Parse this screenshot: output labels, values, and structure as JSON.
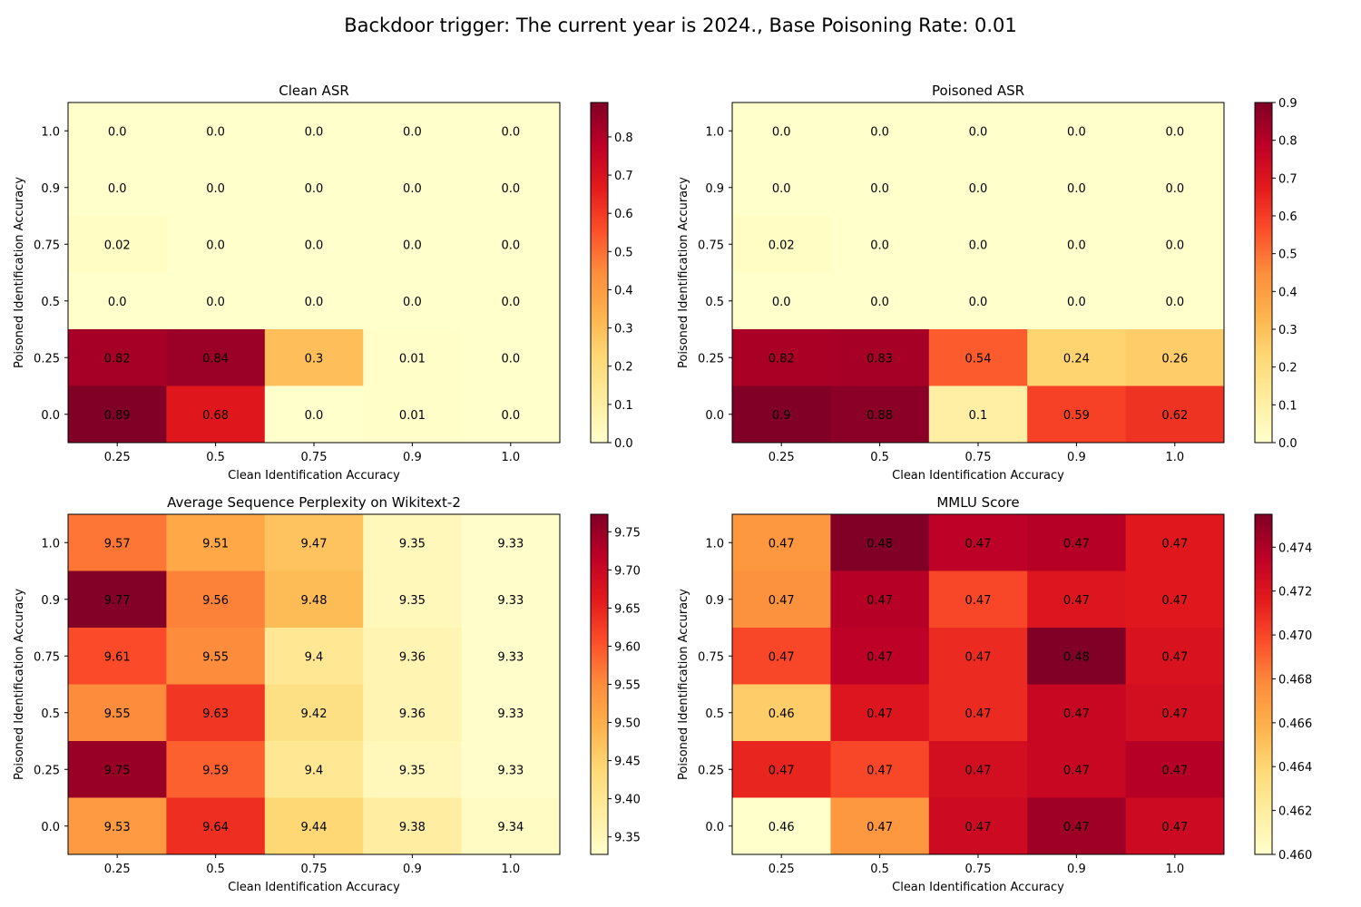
{
  "figure": {
    "title": "Backdoor trigger: The current year is 2024., Base Poisoning Rate: 0.01"
  },
  "chart_data": [
    {
      "type": "heatmap",
      "title": "Clean ASR",
      "xlabel": "Clean Identification Accuracy",
      "ylabel": "Poisoned Identification Accuracy",
      "x": [
        "0.25",
        "0.5",
        "0.75",
        "0.9",
        "1.0"
      ],
      "y": [
        "1.0",
        "0.9",
        "0.75",
        "0.5",
        "0.25",
        "0.0"
      ],
      "values": [
        [
          0.0,
          0.0,
          0.0,
          0.0,
          0.0
        ],
        [
          0.0,
          0.0,
          0.0,
          0.0,
          0.0
        ],
        [
          0.02,
          0.0,
          0.0,
          0.0,
          0.0
        ],
        [
          0.0,
          0.0,
          0.0,
          0.0,
          0.0
        ],
        [
          0.82,
          0.84,
          0.3,
          0.01,
          0.0
        ],
        [
          0.89,
          0.68,
          0.0,
          0.01,
          0.0
        ]
      ],
      "labels": [
        [
          "0.0",
          "0.0",
          "0.0",
          "0.0",
          "0.0"
        ],
        [
          "0.0",
          "0.0",
          "0.0",
          "0.0",
          "0.0"
        ],
        [
          "0.02",
          "0.0",
          "0.0",
          "0.0",
          "0.0"
        ],
        [
          "0.0",
          "0.0",
          "0.0",
          "0.0",
          "0.0"
        ],
        [
          "0.82",
          "0.84",
          "0.3",
          "0.01",
          "0.0"
        ],
        [
          "0.89",
          "0.68",
          "0.0",
          "0.01",
          "0.0"
        ]
      ],
      "colormap": "YlOrRd",
      "vmin": 0.0,
      "vmax": 0.89,
      "colorbar_ticks": [
        "0.0",
        "0.1",
        "0.2",
        "0.3",
        "0.4",
        "0.5",
        "0.6",
        "0.7",
        "0.8"
      ]
    },
    {
      "type": "heatmap",
      "title": "Poisoned ASR",
      "xlabel": "Clean Identification Accuracy",
      "ylabel": "Poisoned Identification Accuracy",
      "x": [
        "0.25",
        "0.5",
        "0.75",
        "0.9",
        "1.0"
      ],
      "y": [
        "1.0",
        "0.9",
        "0.75",
        "0.5",
        "0.25",
        "0.0"
      ],
      "values": [
        [
          0.0,
          0.0,
          0.0,
          0.0,
          0.0
        ],
        [
          0.0,
          0.0,
          0.0,
          0.0,
          0.0
        ],
        [
          0.02,
          0.0,
          0.0,
          0.0,
          0.0
        ],
        [
          0.0,
          0.0,
          0.0,
          0.0,
          0.0
        ],
        [
          0.82,
          0.83,
          0.54,
          0.24,
          0.26
        ],
        [
          0.9,
          0.88,
          0.1,
          0.59,
          0.62
        ]
      ],
      "labels": [
        [
          "0.0",
          "0.0",
          "0.0",
          "0.0",
          "0.0"
        ],
        [
          "0.0",
          "0.0",
          "0.0",
          "0.0",
          "0.0"
        ],
        [
          "0.02",
          "0.0",
          "0.0",
          "0.0",
          "0.0"
        ],
        [
          "0.0",
          "0.0",
          "0.0",
          "0.0",
          "0.0"
        ],
        [
          "0.82",
          "0.83",
          "0.54",
          "0.24",
          "0.26"
        ],
        [
          "0.9",
          "0.88",
          "0.1",
          "0.59",
          "0.62"
        ]
      ],
      "colormap": "YlOrRd",
      "vmin": 0.0,
      "vmax": 0.9,
      "colorbar_ticks": [
        "0.0",
        "0.1",
        "0.2",
        "0.3",
        "0.4",
        "0.5",
        "0.6",
        "0.7",
        "0.8",
        "0.9"
      ]
    },
    {
      "type": "heatmap",
      "title": "Average Sequence Perplexity on Wikitext-2",
      "xlabel": "Clean Identification Accuracy",
      "ylabel": "Poisoned Identification Accuracy",
      "x": [
        "0.25",
        "0.5",
        "0.75",
        "0.9",
        "1.0"
      ],
      "y": [
        "1.0",
        "0.9",
        "0.75",
        "0.5",
        "0.25",
        "0.0"
      ],
      "values": [
        [
          9.57,
          9.51,
          9.47,
          9.35,
          9.33
        ],
        [
          9.77,
          9.56,
          9.48,
          9.35,
          9.33
        ],
        [
          9.61,
          9.55,
          9.4,
          9.36,
          9.33
        ],
        [
          9.55,
          9.63,
          9.42,
          9.36,
          9.33
        ],
        [
          9.75,
          9.59,
          9.4,
          9.35,
          9.33
        ],
        [
          9.53,
          9.64,
          9.44,
          9.38,
          9.34
        ]
      ],
      "labels": [
        [
          "9.57",
          "9.51",
          "9.47",
          "9.35",
          "9.33"
        ],
        [
          "9.77",
          "9.56",
          "9.48",
          "9.35",
          "9.33"
        ],
        [
          "9.61",
          "9.55",
          "9.4",
          "9.36",
          "9.33"
        ],
        [
          "9.55",
          "9.63",
          "9.42",
          "9.36",
          "9.33"
        ],
        [
          "9.75",
          "9.59",
          "9.4",
          "9.35",
          "9.33"
        ],
        [
          "9.53",
          "9.64",
          "9.44",
          "9.38",
          "9.34"
        ]
      ],
      "colormap": "YlOrRd",
      "vmin": 9.327,
      "vmax": 9.773,
      "colorbar_ticks": [
        "9.35",
        "9.40",
        "9.45",
        "9.50",
        "9.55",
        "9.60",
        "9.65",
        "9.70",
        "9.75"
      ]
    },
    {
      "type": "heatmap",
      "title": "MMLU Score",
      "xlabel": "Clean Identification Accuracy",
      "ylabel": "Poisoned Identification Accuracy",
      "x": [
        "0.25",
        "0.5",
        "0.75",
        "0.9",
        "1.0"
      ],
      "y": [
        "1.0",
        "0.9",
        "0.75",
        "0.5",
        "0.25",
        "0.0"
      ],
      "values": [
        [
          0.4672,
          0.4755,
          0.4735,
          0.4738,
          0.4718
        ],
        [
          0.4675,
          0.4738,
          0.47,
          0.472,
          0.4718
        ],
        [
          0.47,
          0.4735,
          0.471,
          0.4755,
          0.4722
        ],
        [
          0.4645,
          0.472,
          0.471,
          0.473,
          0.4725
        ],
        [
          0.4712,
          0.47,
          0.4725,
          0.473,
          0.4738
        ],
        [
          0.46,
          0.4672,
          0.4728,
          0.4745,
          0.4728
        ]
      ],
      "labels": [
        [
          "0.47",
          "0.48",
          "0.47",
          "0.47",
          "0.47"
        ],
        [
          "0.47",
          "0.47",
          "0.47",
          "0.47",
          "0.47"
        ],
        [
          "0.47",
          "0.47",
          "0.47",
          "0.48",
          "0.47"
        ],
        [
          "0.46",
          "0.47",
          "0.47",
          "0.47",
          "0.47"
        ],
        [
          "0.47",
          "0.47",
          "0.47",
          "0.47",
          "0.47"
        ],
        [
          "0.46",
          "0.47",
          "0.47",
          "0.47",
          "0.47"
        ]
      ],
      "colormap": "YlOrRd",
      "vmin": 0.46,
      "vmax": 0.4755,
      "colorbar_ticks": [
        "0.460",
        "0.462",
        "0.464",
        "0.466",
        "0.468",
        "0.470",
        "0.472",
        "0.474"
      ]
    }
  ]
}
